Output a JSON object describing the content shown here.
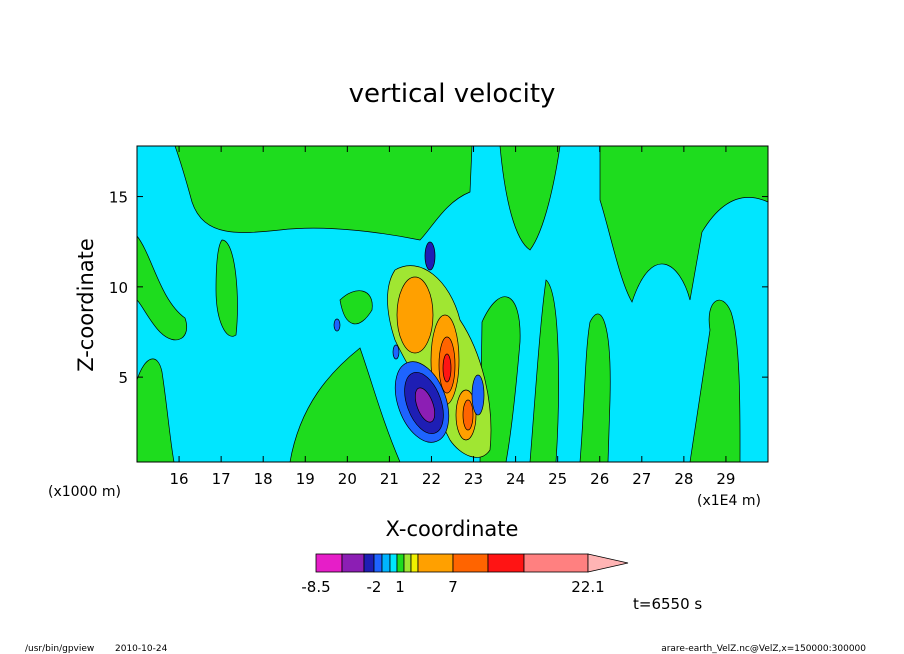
{
  "chart_data": {
    "type": "contour",
    "title": "vertical velocity",
    "x_label": "X-coordinate",
    "y_label": "Z-coordinate",
    "y_unit": "(x1000 m)",
    "x_unit": "(x1E4 m)",
    "xlim": [
      15,
      30
    ],
    "xticks": [
      16,
      17,
      18,
      19,
      20,
      21,
      22,
      23,
      24,
      25,
      26,
      27,
      28,
      29
    ],
    "ylim": [
      0.3,
      17.8
    ],
    "yticks": [
      5,
      10,
      15
    ],
    "colorbar": {
      "levels": [
        -8.5,
        -2,
        1,
        7,
        22.1
      ],
      "colors": [
        "#e61ec8",
        "#8c1eb4",
        "#1e1eb4",
        "#1e64ff",
        "#00b4ff",
        "#00e6ff",
        "#1edc1e",
        "#a0e632",
        "#f0f000",
        "#ffa000",
        "#ff6400",
        "#ff1414",
        "#ff8080",
        "#ffb4b4"
      ]
    },
    "annotation": "t=6550 s",
    "program": "/usr/bin/gpview",
    "date": "2010-10-24",
    "source": "arare-earth_VelZ.nc@VelZ,x=150000:300000"
  }
}
